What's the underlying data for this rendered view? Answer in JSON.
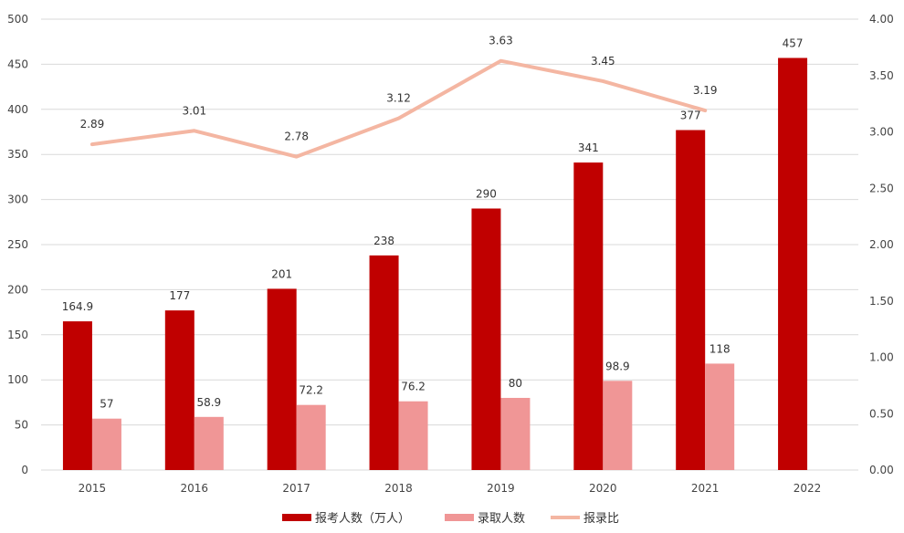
{
  "chart_data": {
    "type": "bar",
    "categories": [
      "2015",
      "2016",
      "2017",
      "2018",
      "2019",
      "2020",
      "2021",
      "2022"
    ],
    "series": [
      {
        "name": "报考人数（万人）",
        "kind": "bar",
        "axis": "left",
        "color": "#c00000",
        "values": [
          164.9,
          177,
          201,
          238,
          290,
          341,
          377,
          457
        ],
        "labels": [
          "164.9",
          "177",
          "201",
          "238",
          "290",
          "341",
          "377",
          "457"
        ]
      },
      {
        "name": "录取人数",
        "kind": "bar",
        "axis": "left",
        "color": "#f09696",
        "values": [
          57,
          58.9,
          72.2,
          76.2,
          80,
          98.9,
          118,
          null
        ],
        "labels": [
          "57",
          "58.9",
          "72.2",
          "76.2",
          "80",
          "98.9",
          "118",
          null
        ]
      },
      {
        "name": "报录比",
        "kind": "line",
        "axis": "right",
        "color": "#f4b6a2",
        "values": [
          2.89,
          3.01,
          2.78,
          3.12,
          3.63,
          3.45,
          3.19,
          null
        ],
        "labels": [
          "2.89",
          "3.01",
          "2.78",
          "3.12",
          "3.63",
          "3.45",
          "3.19",
          null
        ]
      }
    ],
    "y_left": {
      "min": 0,
      "max": 500,
      "step": 50,
      "ticks": [
        "0",
        "50",
        "100",
        "150",
        "200",
        "250",
        "300",
        "350",
        "400",
        "450",
        "500"
      ]
    },
    "y_right": {
      "min": 0,
      "max": 4,
      "step": 0.5,
      "ticks": [
        "0.00",
        "0.50",
        "1.00",
        "1.50",
        "2.00",
        "2.50",
        "3.00",
        "3.50",
        "4.00"
      ]
    },
    "legend": [
      "报考人数（万人）",
      "录取人数",
      "报录比"
    ],
    "legend_position": "bottom",
    "grid": true
  }
}
